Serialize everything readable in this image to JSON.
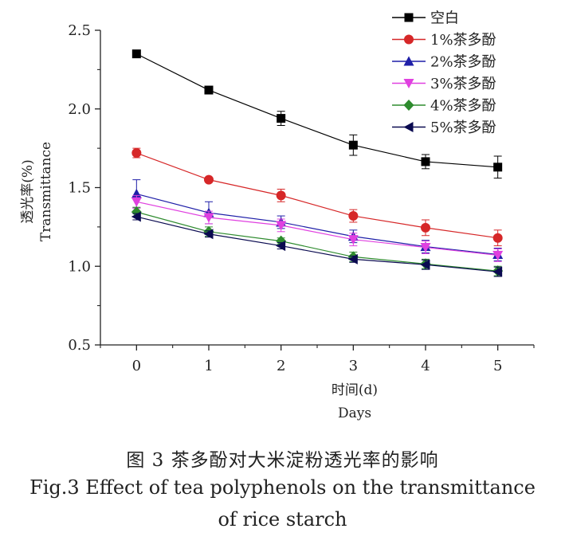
{
  "chart_data": {
    "type": "line",
    "x": [
      0,
      1,
      2,
      3,
      4,
      5
    ],
    "xlim": [
      -0.5,
      5.5
    ],
    "ylim": [
      0.5,
      2.5
    ],
    "xticks": [
      "0",
      "1",
      "2",
      "3",
      "4",
      "5"
    ],
    "yticks": [
      "0.5",
      "1.0",
      "1.5",
      "2.0",
      "2.5"
    ],
    "ylabel_cn": "透光率(%)",
    "ylabel_en": "Transmittance",
    "xlabel_cn": "时间(d)",
    "xlabel_en": "Days",
    "legend_position": "top-right",
    "series": [
      {
        "name": "空白",
        "color": "#000000",
        "marker": "square",
        "values": [
          2.35,
          2.12,
          1.94,
          1.77,
          1.665,
          1.63
        ],
        "errors": [
          0.02,
          0.015,
          0.045,
          0.065,
          0.045,
          0.07
        ]
      },
      {
        "name": "1%茶多酚",
        "color": "#d62728",
        "marker": "circle",
        "values": [
          1.72,
          1.55,
          1.45,
          1.32,
          1.245,
          1.18
        ],
        "errors": [
          0.03,
          0.015,
          0.04,
          0.04,
          0.05,
          0.05
        ]
      },
      {
        "name": "2%茶多酚",
        "color": "#1f1fa8",
        "marker": "triangle-up",
        "values": [
          1.46,
          1.34,
          1.28,
          1.19,
          1.125,
          1.075
        ],
        "errors": [
          0.09,
          0.07,
          0.04,
          0.04,
          0.04,
          0.04
        ]
      },
      {
        "name": "3%茶多酚",
        "color": "#e040e0",
        "marker": "triangle-down",
        "values": [
          1.41,
          1.31,
          1.26,
          1.17,
          1.12,
          1.07
        ],
        "errors": [
          0.04,
          0.04,
          0.04,
          0.04,
          0.04,
          0.04
        ]
      },
      {
        "name": "4%茶多酚",
        "color": "#2e8b2e",
        "marker": "diamond",
        "values": [
          1.345,
          1.22,
          1.16,
          1.06,
          1.015,
          0.97
        ],
        "errors": [
          0.03,
          0.03,
          0.02,
          0.03,
          0.03,
          0.03
        ]
      },
      {
        "name": "5%茶多酚",
        "color": "#0a0a50",
        "marker": "triangle-left",
        "values": [
          1.315,
          1.205,
          1.13,
          1.045,
          1.01,
          0.965
        ],
        "errors": [
          0.02,
          0.02,
          0.02,
          0.02,
          0.03,
          0.03
        ]
      }
    ]
  },
  "caption": {
    "cn": "图 3  茶多酚对大米淀粉透光率的影响",
    "en_line1": "Fig.3 Effect of tea polyphenols on the transmittance",
    "en_line2": "of rice starch"
  }
}
